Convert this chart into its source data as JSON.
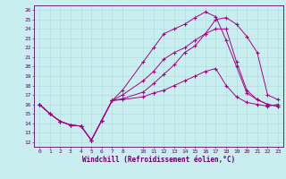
{
  "xlabel": "Windchill (Refroidissement éolien,°C)",
  "background_color": "#c8eef0",
  "grid_color": "#b0d8dc",
  "line_color": "#aa0088",
  "xlim": [
    -0.5,
    23.5
  ],
  "ylim": [
    11.5,
    26.5
  ],
  "xticks": [
    0,
    1,
    2,
    3,
    4,
    5,
    6,
    7,
    8,
    10,
    11,
    12,
    13,
    14,
    15,
    16,
    17,
    18,
    19,
    20,
    21,
    22,
    23
  ],
  "yticks": [
    12,
    13,
    14,
    15,
    16,
    17,
    18,
    19,
    20,
    21,
    22,
    23,
    24,
    25,
    26
  ],
  "line1_x": [
    0,
    1,
    2,
    3,
    4,
    5,
    6,
    7,
    8,
    10,
    11,
    12,
    13,
    14,
    15,
    16,
    17,
    18,
    19,
    20,
    21,
    22,
    23
  ],
  "line1_y": [
    16.0,
    15.0,
    14.2,
    13.8,
    13.7,
    12.2,
    14.3,
    16.4,
    16.5,
    16.8,
    17.2,
    17.5,
    18.0,
    18.5,
    19.0,
    19.5,
    19.8,
    18.0,
    16.8,
    16.2,
    16.0,
    15.8,
    16.0
  ],
  "line2_x": [
    0,
    1,
    2,
    3,
    4,
    5,
    6,
    7,
    8,
    10,
    11,
    12,
    13,
    14,
    15,
    16,
    17,
    18,
    19,
    20,
    21,
    22,
    23
  ],
  "line2_y": [
    16.0,
    15.0,
    14.2,
    13.8,
    13.7,
    12.2,
    14.3,
    16.4,
    17.0,
    18.5,
    19.5,
    20.8,
    21.5,
    22.0,
    22.8,
    23.5,
    24.0,
    24.0,
    20.5,
    17.5,
    16.5,
    16.0,
    15.8
  ],
  "line3_x": [
    0,
    1,
    2,
    3,
    4,
    5,
    6,
    7,
    8,
    10,
    11,
    12,
    13,
    14,
    15,
    16,
    17,
    18,
    19,
    20,
    21,
    22,
    23
  ],
  "line3_y": [
    16.0,
    15.0,
    14.2,
    13.8,
    13.7,
    12.2,
    14.3,
    16.4,
    16.6,
    17.3,
    18.2,
    19.2,
    20.2,
    21.5,
    22.2,
    23.5,
    25.0,
    25.2,
    24.5,
    23.2,
    21.5,
    17.0,
    16.5
  ],
  "line4_x": [
    0,
    1,
    2,
    3,
    4,
    5,
    6,
    7,
    8,
    10,
    11,
    12,
    13,
    14,
    15,
    16,
    17,
    18,
    19,
    20,
    21,
    22,
    23
  ],
  "line4_y": [
    16.0,
    15.0,
    14.2,
    13.8,
    13.7,
    12.2,
    14.3,
    16.4,
    17.5,
    20.5,
    22.0,
    23.5,
    24.0,
    24.5,
    25.2,
    25.8,
    25.3,
    22.8,
    20.0,
    17.2,
    16.5,
    16.0,
    15.8
  ]
}
